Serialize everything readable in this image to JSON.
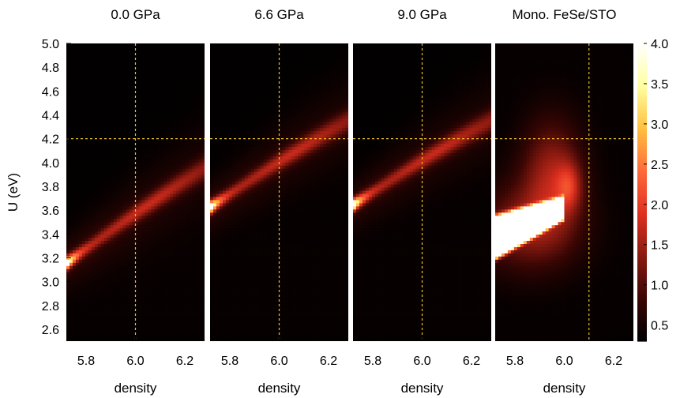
{
  "chart_data": [
    {
      "type": "heatmap",
      "title": "0.0 GPa",
      "xlabel": "density",
      "ylabel": "U (eV)",
      "xlim": [
        5.72,
        6.28
      ],
      "ylim": [
        2.5,
        5.0
      ],
      "xticks": [
        "5.8",
        "6.0",
        "6.2"
      ],
      "yticks": [
        "2.6",
        "2.8",
        "3.0",
        "3.2",
        "3.4",
        "3.6",
        "3.8",
        "4.0",
        "4.2",
        "4.4",
        "4.6",
        "4.8",
        "5.0"
      ],
      "ref_lines": {
        "density": 6.0,
        "U": 4.2
      },
      "ridge": {
        "start": [
          5.72,
          3.15
        ],
        "end": [
          6.28,
          3.95
        ],
        "peak_value": 4.0
      }
    },
    {
      "type": "heatmap",
      "title": "6.6 GPa",
      "xlabel": "density",
      "xlim": [
        5.72,
        6.28
      ],
      "ylim": [
        2.5,
        5.0
      ],
      "xticks": [
        "5.8",
        "6.0",
        "6.2"
      ],
      "ref_lines": {
        "density": 6.0,
        "U": 4.2
      },
      "ridge": {
        "start": [
          5.72,
          3.62
        ],
        "end": [
          6.28,
          4.35
        ],
        "peak_value": 4.0
      }
    },
    {
      "type": "heatmap",
      "title": "9.0 GPa",
      "xlabel": "density",
      "xlim": [
        5.72,
        6.28
      ],
      "ylim": [
        2.5,
        5.0
      ],
      "xticks": [
        "5.8",
        "6.0",
        "6.2"
      ],
      "ref_lines": {
        "density": 6.0,
        "U": 4.2
      },
      "ridge": {
        "start": [
          5.72,
          3.64
        ],
        "end": [
          6.28,
          4.35
        ],
        "peak_value": 4.0
      }
    },
    {
      "type": "heatmap",
      "title": "Mono. FeSe/STO",
      "xlabel": "density",
      "xlim": [
        5.72,
        6.28
      ],
      "ylim": [
        2.5,
        5.0
      ],
      "xticks": [
        "5.8",
        "6.0",
        "6.2"
      ],
      "ref_lines": {
        "density": 6.1,
        "U": 4.2
      },
      "hotspot": {
        "density_range": [
          5.72,
          6.0
        ],
        "U_range": [
          3.2,
          3.7
        ],
        "peak_value": 4.0
      }
    }
  ],
  "colorbar": {
    "range": [
      0.3,
      4.0
    ],
    "ticks": [
      "0.5",
      "1.0",
      "1.5",
      "2.0",
      "2.5",
      "3.0",
      "3.5",
      "4.0"
    ],
    "colors": [
      "#000000",
      "#3a0604",
      "#8a1a10",
      "#e03020",
      "#ff6a3a",
      "#ffc040",
      "#ffffa0",
      "#ffffff"
    ]
  },
  "reference_line_color": "#e8c020"
}
